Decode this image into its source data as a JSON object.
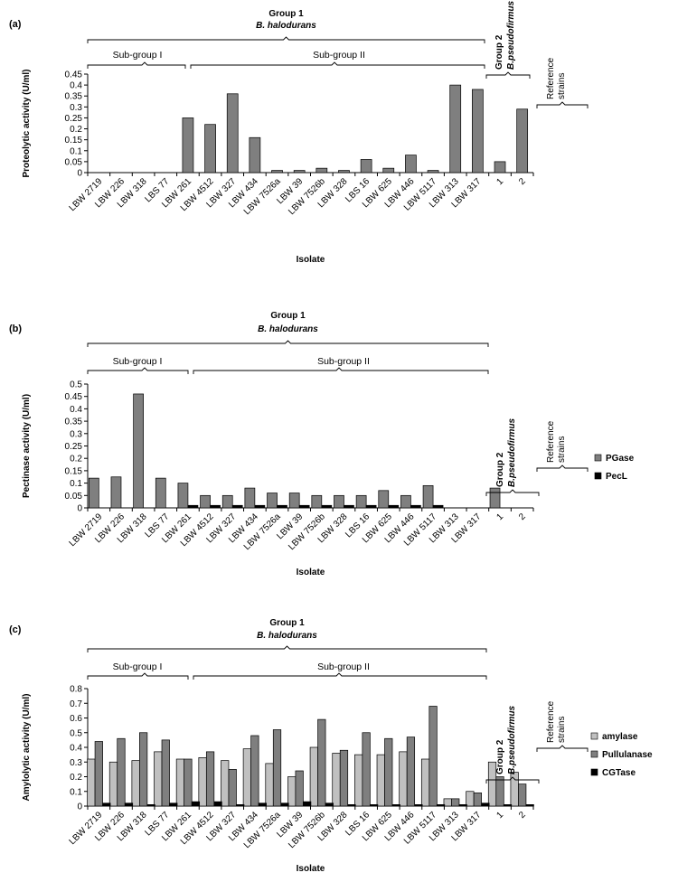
{
  "figure": {
    "categories": [
      "LBW 2719",
      "LBW 226",
      "LBW 318",
      "LBS 77",
      "LBW 261",
      "LBW 4512",
      "LBW 327",
      "LBW 434",
      "LBW 7526a",
      "LBW 39",
      "LBW 7526b",
      "LBW 328",
      "LBS 16",
      "LBW 625",
      "LBW 446",
      "LBW 5117",
      "LBW 313",
      "LBW 317",
      "1",
      "2"
    ],
    "group1_label": "Group 1",
    "group1_species": "B. halodurans",
    "group2_label": "Group 2",
    "group2_species": "B.pseudofirmus",
    "subgroup1_label": "Sub-group I",
    "subgroup2_label": "Sub-group II",
    "reference_line1": "Reference",
    "reference_line2": "strains"
  },
  "colors": {
    "proteolytic": "#7f7f7f",
    "pgase": "#7f7f7f",
    "pecl": "#000000",
    "amylase": "#c0c0c0",
    "pullulanase": "#7f7f7f",
    "cgtase": "#000000"
  },
  "chart_data": [
    {
      "panel_label": "(a)",
      "type": "bar",
      "xlabel": "Isolate",
      "ylabel": "Proteolytic activity (U/ml)",
      "ylim": [
        0,
        0.45
      ],
      "yticks": [
        "0",
        "0.05",
        "0.1",
        "0.15",
        "0.2",
        "0.25",
        "0.3",
        "0.35",
        "0.4",
        "0.45"
      ],
      "legend": "none",
      "series": [
        {
          "values": [
            0,
            0,
            0,
            0,
            0.25,
            0.22,
            0.36,
            0.16,
            0.01,
            0.01,
            0.02,
            0.01,
            0.06,
            0.02,
            0.08,
            0.01,
            0.4,
            0.38,
            0.05,
            0.29
          ]
        }
      ]
    },
    {
      "panel_label": "(b)",
      "type": "bar",
      "xlabel": "Isolate",
      "ylabel": "Pectinase activity (U/ml)",
      "ylim": [
        0,
        0.5
      ],
      "yticks": [
        "0",
        "0.05",
        "0.1",
        "0.15",
        "0.2",
        "0.25",
        "0.3",
        "0.35",
        "0.4",
        "0.45",
        "0.5"
      ],
      "legend": "right",
      "series": [
        {
          "name": "PGase",
          "values": [
            0.12,
            0.125,
            0.46,
            0.12,
            0.1,
            0.05,
            0.05,
            0.08,
            0.06,
            0.06,
            0.05,
            0.05,
            0.05,
            0.07,
            0.05,
            0.09,
            0,
            0,
            0.08,
            0
          ]
        },
        {
          "name": "PecL",
          "values": [
            0,
            0,
            0,
            0,
            0.01,
            0.01,
            0.01,
            0.01,
            0.01,
            0.01,
            0.01,
            0.01,
            0.01,
            0.01,
            0.01,
            0.01,
            0,
            0,
            0,
            0
          ]
        }
      ]
    },
    {
      "panel_label": "(c)",
      "type": "bar",
      "xlabel": "Isolate",
      "ylabel": "Amylolytic activity (U/ml)",
      "ylim": [
        0,
        0.8
      ],
      "yticks": [
        "0",
        "0.1",
        "0.2",
        "0.3",
        "0.4",
        "0.5",
        "0.6",
        "0.7",
        "0.8"
      ],
      "legend": "right",
      "series": [
        {
          "name": "amylase",
          "values": [
            0.32,
            0.3,
            0.31,
            0.37,
            0.32,
            0.33,
            0.31,
            0.39,
            0.29,
            0.2,
            0.4,
            0.36,
            0.35,
            0.35,
            0.37,
            0.32,
            0.05,
            0.1,
            0.3,
            0.23
          ]
        },
        {
          "name": "Pullulanase",
          "values": [
            0.44,
            0.46,
            0.5,
            0.45,
            0.32,
            0.37,
            0.25,
            0.48,
            0.52,
            0.24,
            0.59,
            0.38,
            0.5,
            0.46,
            0.47,
            0.68,
            0.05,
            0.09,
            0.2,
            0.15
          ]
        },
        {
          "name": "CGTase",
          "values": [
            0.02,
            0.02,
            0.01,
            0.02,
            0.03,
            0.03,
            0.01,
            0.02,
            0.02,
            0.03,
            0.02,
            0.01,
            0.01,
            0.01,
            0.01,
            0.01,
            0.01,
            0.02,
            0.01,
            0.01
          ]
        }
      ]
    }
  ]
}
